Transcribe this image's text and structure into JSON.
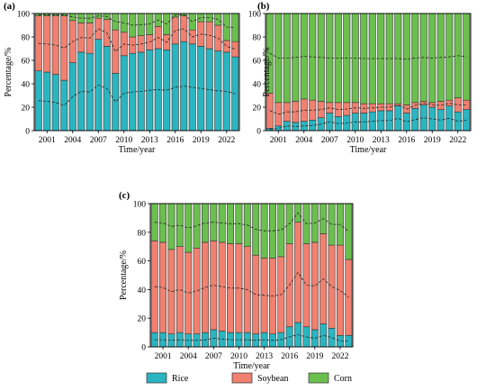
{
  "colors": {
    "rice": "#2ab5c0",
    "soybean": "#f08070",
    "corn": "#6bbf4e"
  },
  "legend": [
    {
      "key": "rice",
      "label": "Rice"
    },
    {
      "key": "soybean",
      "label": "Soybean"
    },
    {
      "key": "corn",
      "label": "Corn"
    }
  ],
  "chart_data": [
    {
      "panel": "(a)",
      "type": "bar",
      "stacked": true,
      "xlabel": "Time/year",
      "ylabel": "Percentage/%",
      "ylim": [
        0,
        100
      ],
      "yticks": [
        0,
        20,
        40,
        60,
        80,
        100
      ],
      "xticks": [
        "2001",
        "2004",
        "2007",
        "2010",
        "2013",
        "2016",
        "2019",
        "2022"
      ],
      "categories": [
        "2000",
        "2001",
        "2002",
        "2003",
        "2004",
        "2005",
        "2006",
        "2007",
        "2008",
        "2009",
        "2010",
        "2011",
        "2012",
        "2013",
        "2014",
        "2015",
        "2016",
        "2017",
        "2018",
        "2019",
        "2020",
        "2021",
        "2022",
        "2023"
      ],
      "series": [
        {
          "name": "Rice",
          "values": [
            51,
            50,
            48,
            43,
            58,
            67,
            66,
            78,
            72,
            49,
            64,
            66,
            67,
            69,
            70,
            69,
            74,
            76,
            74,
            72,
            70,
            68,
            67,
            63
          ]
        },
        {
          "name": "Soybean",
          "values": [
            47,
            48,
            50,
            55,
            36,
            25,
            26,
            18,
            23,
            37,
            20,
            14,
            14,
            13,
            19,
            13,
            23,
            22,
            12,
            21,
            23,
            22,
            10,
            13
          ]
        },
        {
          "name": "Corn",
          "values": [
            2,
            2,
            2,
            2,
            6,
            8,
            8,
            4,
            5,
            14,
            16,
            20,
            19,
            18,
            11,
            18,
            3,
            2,
            14,
            7,
            7,
            10,
            23,
            24
          ]
        }
      ]
    },
    {
      "panel": "(b)",
      "type": "bar",
      "stacked": true,
      "xlabel": "Time/year",
      "ylabel": "Percentage/%",
      "ylim": [
        0,
        100
      ],
      "yticks": [
        0,
        20,
        40,
        60,
        80,
        100
      ],
      "xticks": [
        "2001",
        "2004",
        "2007",
        "2010",
        "2013",
        "2016",
        "2019",
        "2022"
      ],
      "categories": [
        "2000",
        "2001",
        "2002",
        "2003",
        "2004",
        "2005",
        "2006",
        "2007",
        "2008",
        "2009",
        "2010",
        "2011",
        "2012",
        "2013",
        "2014",
        "2015",
        "2016",
        "2017",
        "2018",
        "2019",
        "2020",
        "2021",
        "2022",
        "2023"
      ],
      "series": [
        {
          "name": "Rice",
          "values": [
            2,
            4,
            8,
            7,
            8,
            9,
            11,
            15,
            12,
            13,
            15,
            15,
            16,
            17,
            17,
            21,
            15,
            19,
            22,
            20,
            18,
            21,
            16,
            18
          ]
        },
        {
          "name": "Soybean",
          "values": [
            30,
            20,
            16,
            18,
            19,
            17,
            14,
            9,
            12,
            11,
            9,
            8,
            7,
            6,
            6,
            2,
            7,
            5,
            3,
            4,
            7,
            5,
            12,
            8
          ]
        },
        {
          "name": "Corn",
          "values": [
            68,
            76,
            76,
            75,
            73,
            74,
            75,
            76,
            76,
            76,
            76,
            77,
            77,
            77,
            77,
            77,
            78,
            76,
            75,
            76,
            75,
            74,
            72,
            74
          ]
        }
      ]
    },
    {
      "panel": "(c)",
      "type": "bar",
      "stacked": true,
      "xlabel": "Time/year",
      "ylabel": "Percentage/%",
      "ylim": [
        0,
        100
      ],
      "yticks": [
        0,
        20,
        40,
        60,
        80,
        100
      ],
      "xticks": [
        "2001",
        "2004",
        "2007",
        "2010",
        "2013",
        "2016",
        "2019",
        "2022"
      ],
      "categories": [
        "2000",
        "2001",
        "2002",
        "2003",
        "2004",
        "2005",
        "2006",
        "2007",
        "2008",
        "2009",
        "2010",
        "2011",
        "2012",
        "2013",
        "2014",
        "2015",
        "2016",
        "2017",
        "2018",
        "2019",
        "2020",
        "2021",
        "2022",
        "2023"
      ],
      "series": [
        {
          "name": "Rice",
          "values": [
            10,
            10,
            9,
            10,
            9,
            9,
            10,
            12,
            11,
            10,
            10,
            10,
            9,
            10,
            9,
            10,
            14,
            17,
            14,
            12,
            16,
            13,
            8,
            8
          ]
        },
        {
          "name": "Soybean",
          "values": [
            64,
            63,
            59,
            60,
            57,
            60,
            63,
            62,
            62,
            62,
            62,
            60,
            55,
            52,
            53,
            53,
            58,
            70,
            58,
            61,
            63,
            58,
            63,
            53
          ]
        },
        {
          "name": "Corn",
          "values": [
            26,
            27,
            32,
            30,
            34,
            31,
            27,
            26,
            27,
            28,
            28,
            30,
            36,
            38,
            38,
            37,
            28,
            13,
            28,
            27,
            21,
            29,
            29,
            39
          ]
        }
      ]
    }
  ]
}
